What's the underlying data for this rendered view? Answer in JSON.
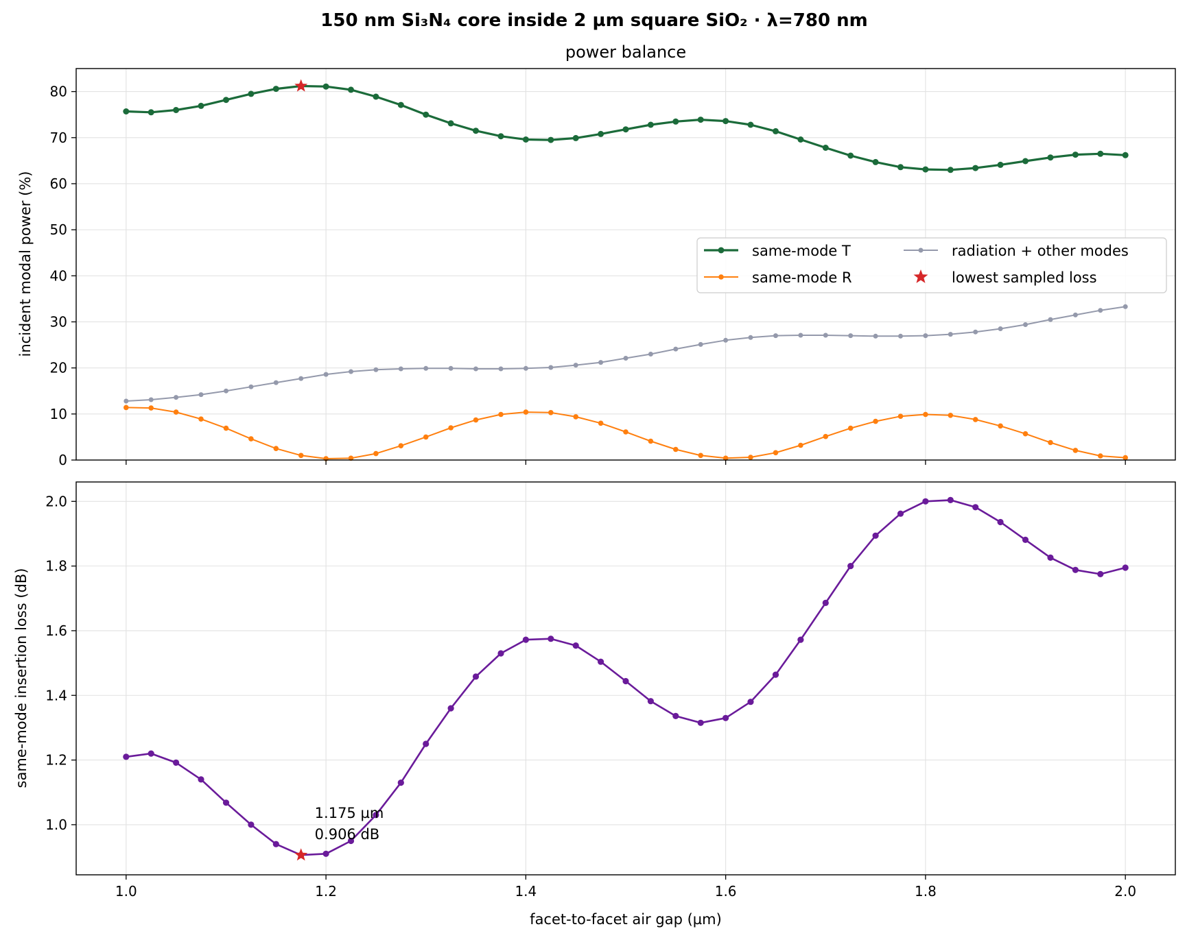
{
  "suptitle": "150 nm Si₃N₄ core inside 2 µm square SiO₂ · λ=780 nm",
  "colors": {
    "T": "#1b6b3a",
    "R": "#ff7f0e",
    "rad": "#9499ab",
    "loss": "#6a1b9a",
    "star": "#d62728"
  },
  "chart_data": [
    {
      "type": "line",
      "title": "power balance",
      "xlabel": "",
      "ylabel": "incident modal power (%)",
      "xlim": [
        0.95,
        2.05
      ],
      "ylim": [
        0,
        85
      ],
      "xticks": [
        1.0,
        1.2,
        1.4,
        1.6,
        1.8,
        2.0
      ],
      "yticks": [
        0,
        10,
        20,
        30,
        40,
        50,
        60,
        70,
        80
      ],
      "grid": true,
      "legend_position": "center-right",
      "x": [
        1.0,
        1.025,
        1.05,
        1.075,
        1.1,
        1.125,
        1.15,
        1.175,
        1.2,
        1.225,
        1.25,
        1.275,
        1.3,
        1.325,
        1.35,
        1.375,
        1.4,
        1.425,
        1.45,
        1.475,
        1.5,
        1.525,
        1.55,
        1.575,
        1.6,
        1.625,
        1.65,
        1.675,
        1.7,
        1.725,
        1.75,
        1.775,
        1.8,
        1.825,
        1.85,
        1.875,
        1.9,
        1.925,
        1.95,
        1.975,
        2.0
      ],
      "series": [
        {
          "name": "same-mode T",
          "key": "T",
          "values": [
            75.7,
            75.5,
            76.0,
            76.9,
            78.2,
            79.5,
            80.6,
            81.2,
            81.1,
            80.4,
            78.9,
            77.1,
            75.0,
            73.1,
            71.5,
            70.3,
            69.6,
            69.5,
            69.9,
            70.8,
            71.8,
            72.8,
            73.5,
            73.9,
            73.6,
            72.8,
            71.4,
            69.6,
            67.8,
            66.1,
            64.7,
            63.6,
            63.1,
            63.0,
            63.4,
            64.1,
            64.9,
            65.7,
            66.3,
            66.5,
            66.2
          ]
        },
        {
          "name": "same-mode R",
          "key": "R",
          "values": [
            11.4,
            11.3,
            10.4,
            8.9,
            6.9,
            4.6,
            2.5,
            1.0,
            0.3,
            0.4,
            1.4,
            3.1,
            5.0,
            7.0,
            8.7,
            9.9,
            10.4,
            10.3,
            9.4,
            8.0,
            6.1,
            4.1,
            2.3,
            1.0,
            0.4,
            0.6,
            1.6,
            3.2,
            5.1,
            6.9,
            8.4,
            9.5,
            9.9,
            9.7,
            8.8,
            7.4,
            5.7,
            3.8,
            2.1,
            0.9,
            0.5
          ]
        },
        {
          "name": "radiation + other modes",
          "key": "rad",
          "values": [
            12.8,
            13.1,
            13.6,
            14.2,
            15.0,
            15.9,
            16.8,
            17.7,
            18.6,
            19.2,
            19.6,
            19.8,
            19.9,
            19.9,
            19.8,
            19.8,
            19.9,
            20.1,
            20.6,
            21.2,
            22.1,
            23.0,
            24.1,
            25.1,
            26.0,
            26.6,
            27.0,
            27.1,
            27.1,
            27.0,
            26.9,
            26.9,
            27.0,
            27.3,
            27.8,
            28.5,
            29.4,
            30.5,
            31.5,
            32.5,
            33.3
          ]
        }
      ],
      "marker": {
        "name": "lowest sampled loss",
        "x": 1.175,
        "y": 81.2
      }
    },
    {
      "type": "line",
      "title": "",
      "xlabel": "facet-to-facet air gap (µm)",
      "ylabel": "same-mode insertion loss (dB)",
      "xlim": [
        0.95,
        2.05
      ],
      "ylim": [
        0.845,
        2.06
      ],
      "xticks": [
        1.0,
        1.2,
        1.4,
        1.6,
        1.8,
        2.0
      ],
      "yticks": [
        1.0,
        1.2,
        1.4,
        1.6,
        1.8,
        2.0
      ],
      "grid": true,
      "x": [
        1.0,
        1.025,
        1.05,
        1.075,
        1.1,
        1.125,
        1.15,
        1.175,
        1.2,
        1.225,
        1.25,
        1.275,
        1.3,
        1.325,
        1.35,
        1.375,
        1.4,
        1.425,
        1.45,
        1.475,
        1.5,
        1.525,
        1.55,
        1.575,
        1.6,
        1.625,
        1.65,
        1.675,
        1.7,
        1.725,
        1.75,
        1.775,
        1.8,
        1.825,
        1.85,
        1.875,
        1.9,
        1.925,
        1.95,
        1.975,
        2.0
      ],
      "series": [
        {
          "name": "",
          "key": "loss",
          "values": [
            1.21,
            1.22,
            1.192,
            1.14,
            1.068,
            1.0,
            0.94,
            0.906,
            0.91,
            0.95,
            1.03,
            1.13,
            1.25,
            1.36,
            1.458,
            1.53,
            1.572,
            1.575,
            1.554,
            1.504,
            1.444,
            1.382,
            1.336,
            1.315,
            1.33,
            1.38,
            1.464,
            1.572,
            1.686,
            1.8,
            1.894,
            1.962,
            2.0,
            2.004,
            1.982,
            1.936,
            1.881,
            1.826,
            1.788,
            1.775,
            1.795
          ]
        }
      ],
      "marker": {
        "x": 1.175,
        "y": 0.906
      },
      "annotation": [
        "1.175 µm",
        "0.906 dB"
      ]
    }
  ]
}
